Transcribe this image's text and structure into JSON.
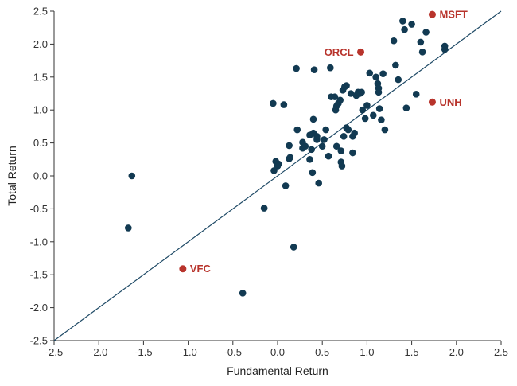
{
  "chart_data": {
    "type": "scatter",
    "title": "",
    "xlabel": "Fundamental Return",
    "ylabel": "Total Return",
    "xlim": [
      -2.5,
      2.5
    ],
    "ylim": [
      -2.5,
      2.5
    ],
    "x_ticks": [
      "-2.5",
      "-2.0",
      "-1.5",
      "-1.0",
      "-0.5",
      "0.0",
      "0.5",
      "1.0",
      "1.5",
      "2.0",
      "2.5"
    ],
    "y_ticks": [
      "2.5",
      "2.0",
      "1.5",
      "1.0",
      "0.5",
      "0.0",
      "-0.5",
      "-1.0",
      "-1.5",
      "-2.0",
      "-2.5"
    ],
    "grid": false,
    "reference_line": {
      "from": [
        -2.5,
        -2.5
      ],
      "to": [
        2.5,
        2.5
      ]
    },
    "colors": {
      "points": "#123a52",
      "highlight": "#b8342c",
      "line": "#1f4a66",
      "axis": "#333333"
    },
    "points": [
      [
        -1.63,
        0.0
      ],
      [
        -1.67,
        -0.79
      ],
      [
        -0.39,
        -1.78
      ],
      [
        -0.15,
        -0.49
      ],
      [
        0.18,
        -1.08
      ],
      [
        -0.05,
        1.1
      ],
      [
        0.07,
        1.08
      ],
      [
        0.21,
        1.63
      ],
      [
        0.41,
        1.61
      ],
      [
        0.59,
        1.64
      ],
      [
        -0.04,
        0.08
      ],
      [
        -0.02,
        0.22
      ],
      [
        0.0,
        0.15
      ],
      [
        0.01,
        0.18
      ],
      [
        0.09,
        -0.15
      ],
      [
        0.13,
        0.46
      ],
      [
        0.13,
        0.26
      ],
      [
        0.22,
        0.7
      ],
      [
        0.28,
        0.51
      ],
      [
        0.31,
        0.45
      ],
      [
        0.36,
        0.25
      ],
      [
        0.39,
        0.05
      ],
      [
        0.4,
        0.65
      ],
      [
        0.4,
        0.86
      ],
      [
        0.44,
        0.55
      ],
      [
        0.44,
        0.6
      ],
      [
        0.46,
        -0.11
      ],
      [
        0.5,
        0.45
      ],
      [
        0.54,
        0.7
      ],
      [
        0.57,
        0.3
      ],
      [
        0.6,
        1.2
      ],
      [
        0.64,
        1.2
      ],
      [
        0.65,
        1.0
      ],
      [
        0.66,
        1.06
      ],
      [
        0.68,
        1.1
      ],
      [
        0.7,
        1.15
      ],
      [
        0.71,
        0.38
      ],
      [
        0.71,
        0.21
      ],
      [
        0.72,
        0.15
      ],
      [
        0.73,
        1.3
      ],
      [
        0.74,
        0.6
      ],
      [
        0.75,
        1.35
      ],
      [
        0.77,
        1.37
      ],
      [
        0.77,
        0.73
      ],
      [
        0.79,
        0.7
      ],
      [
        0.82,
        1.25
      ],
      [
        0.84,
        0.6
      ],
      [
        0.84,
        0.35
      ],
      [
        0.86,
        0.65
      ],
      [
        0.88,
        1.22
      ],
      [
        0.9,
        1.27
      ],
      [
        0.92,
        1.25
      ],
      [
        0.94,
        1.27
      ],
      [
        0.95,
        1.0
      ],
      [
        0.98,
        0.87
      ],
      [
        1.0,
        1.07
      ],
      [
        1.03,
        1.56
      ],
      [
        1.07,
        0.92
      ],
      [
        1.1,
        1.5
      ],
      [
        1.12,
        1.4
      ],
      [
        1.13,
        1.33
      ],
      [
        1.13,
        1.27
      ],
      [
        1.14,
        1.02
      ],
      [
        1.16,
        0.85
      ],
      [
        1.18,
        1.55
      ],
      [
        1.2,
        0.7
      ],
      [
        1.3,
        2.05
      ],
      [
        1.32,
        1.68
      ],
      [
        1.35,
        1.46
      ],
      [
        1.4,
        2.35
      ],
      [
        1.42,
        2.22
      ],
      [
        1.44,
        1.03
      ],
      [
        1.5,
        2.3
      ],
      [
        1.55,
        1.24
      ],
      [
        1.6,
        2.03
      ],
      [
        1.62,
        1.88
      ],
      [
        1.66,
        2.18
      ],
      [
        1.87,
        1.97
      ],
      [
        1.87,
        1.92
      ],
      [
        0.38,
        0.4
      ],
      [
        0.28,
        0.42
      ],
      [
        0.52,
        0.55
      ],
      [
        0.66,
        0.45
      ],
      [
        0.14,
        0.28
      ],
      [
        0.36,
        0.62
      ]
    ],
    "highlights": [
      {
        "label": "MSFT",
        "x": 1.73,
        "y": 2.45,
        "label_side": "right"
      },
      {
        "label": "ORCL",
        "x": 0.93,
        "y": 1.88,
        "label_side": "left"
      },
      {
        "label": "UNH",
        "x": 1.73,
        "y": 1.12,
        "label_side": "right"
      },
      {
        "label": "VFC",
        "x": -1.06,
        "y": -1.41,
        "label_side": "right"
      }
    ]
  }
}
